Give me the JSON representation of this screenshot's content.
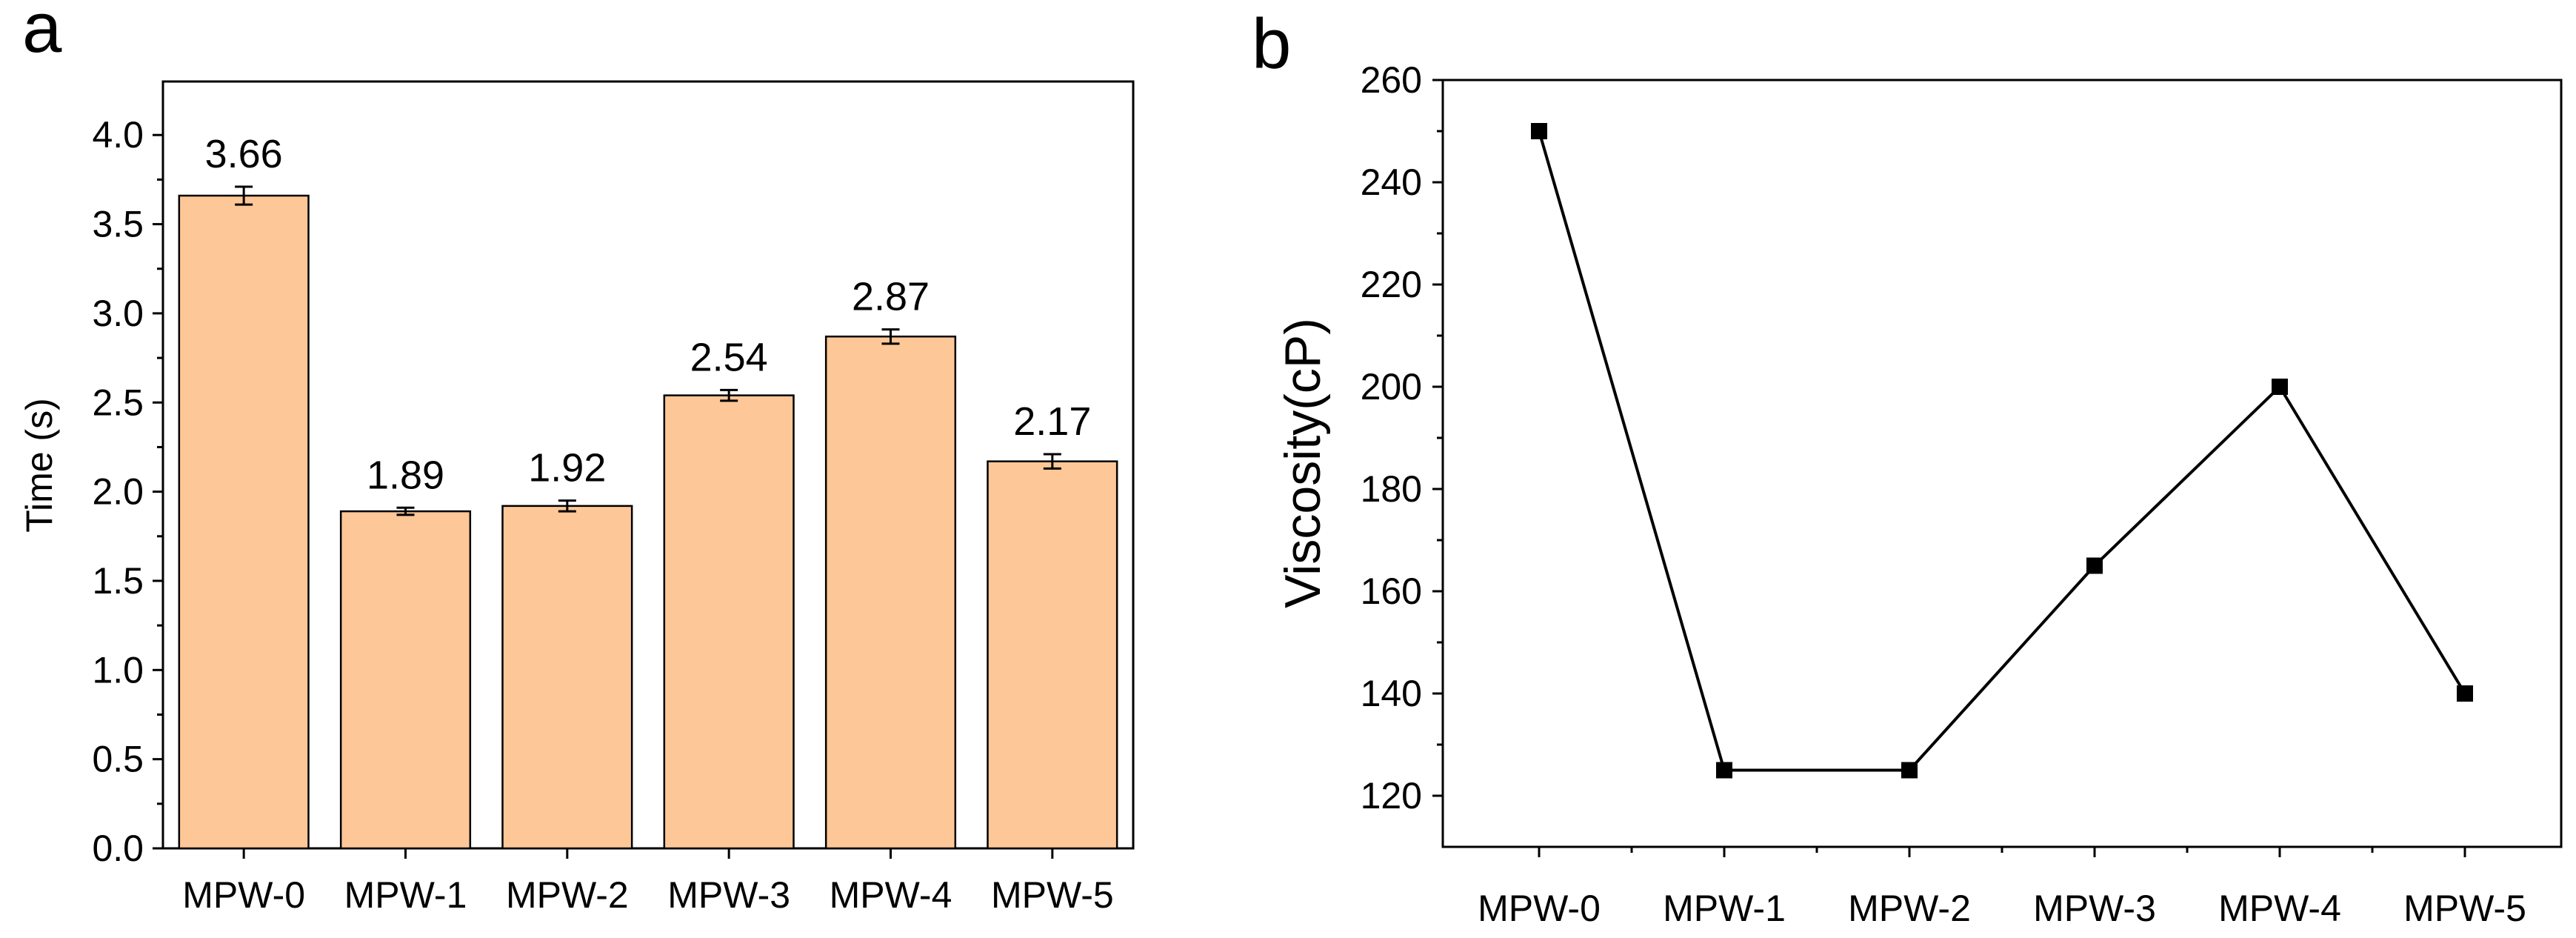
{
  "colors": {
    "bar_fill": "#FDC797",
    "bar_stroke": "#000000",
    "line": "#000000",
    "marker": "#000000",
    "axis": "#000000"
  },
  "chart_data": [
    {
      "panel": "a",
      "type": "bar",
      "title": "",
      "xlabel": "",
      "ylabel": "Time (s)",
      "categories": [
        "MPW-0",
        "MPW-1",
        "MPW-2",
        "MPW-3",
        "MPW-4",
        "MPW-5"
      ],
      "values": [
        3.66,
        1.89,
        1.92,
        2.54,
        2.87,
        2.17
      ],
      "errors": [
        0.05,
        0.02,
        0.03,
        0.03,
        0.04,
        0.04
      ],
      "data_labels": [
        "3.66",
        "1.89",
        "1.92",
        "2.54",
        "2.87",
        "2.17"
      ],
      "ylim": [
        0,
        4.3
      ],
      "yticks": [
        0.0,
        0.5,
        1.0,
        1.5,
        2.0,
        2.5,
        3.0,
        3.5,
        4.0
      ],
      "ytick_labels": [
        "0.0",
        "0.5",
        "1.0",
        "1.5",
        "2.0",
        "2.5",
        "3.0",
        "3.5",
        "4.0"
      ],
      "grid": false,
      "legend": "none"
    },
    {
      "panel": "b",
      "type": "line",
      "title": "",
      "xlabel": "",
      "ylabel": "Viscosity(cP)",
      "categories": [
        "MPW-0",
        "MPW-1",
        "MPW-2",
        "MPW-3",
        "MPW-4",
        "MPW-5"
      ],
      "values": [
        250,
        125,
        125,
        165,
        200,
        140
      ],
      "ylim": [
        110,
        260
      ],
      "yticks": [
        120,
        140,
        160,
        180,
        200,
        220,
        240,
        260
      ],
      "ytick_labels": [
        "120",
        "140",
        "160",
        "180",
        "200",
        "220",
        "240",
        "260"
      ],
      "marker": "square",
      "grid": false,
      "legend": "none"
    }
  ]
}
